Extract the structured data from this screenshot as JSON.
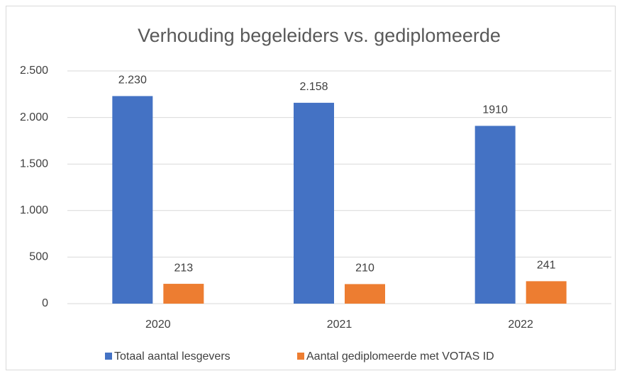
{
  "chart_data": {
    "type": "bar",
    "title": "Verhouding begeleiders vs. gediplomeerde",
    "categories": [
      "2020",
      "2021",
      "2022"
    ],
    "series": [
      {
        "name": "Totaal aantal lesgevers",
        "color": "#4472c4",
        "values": [
          2230,
          2158,
          1910
        ],
        "value_labels": [
          "2.230",
          "2.158",
          "1910"
        ]
      },
      {
        "name": "Aantal gediplomeerde met VOTAS ID",
        "color": "#ed7d31",
        "values": [
          213,
          210,
          241
        ]
      }
    ],
    "ylim": [
      0,
      2500
    ],
    "yticks": [
      0,
      500,
      {
        "value": 1000,
        "label": "1.000"
      },
      {
        "value": 1500,
        "label": "1.500"
      },
      {
        "value": 2000,
        "label": "2.000"
      },
      {
        "value": 2500,
        "label": "2.500"
      }
    ],
    "grid": true,
    "legend": "bottom"
  }
}
